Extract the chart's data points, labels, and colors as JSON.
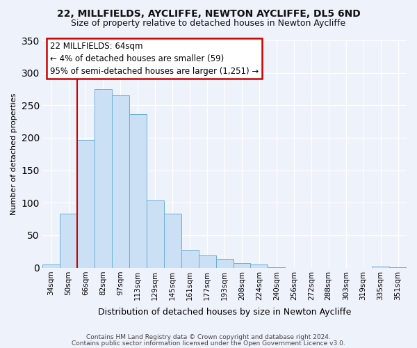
{
  "title1": "22, MILLFIELDS, AYCLIFFE, NEWTON AYCLIFFE, DL5 6ND",
  "title2": "Size of property relative to detached houses in Newton Aycliffe",
  "xlabel": "Distribution of detached houses by size in Newton Aycliffe",
  "ylabel": "Number of detached properties",
  "categories": [
    "34sqm",
    "50sqm",
    "66sqm",
    "82sqm",
    "97sqm",
    "113sqm",
    "129sqm",
    "145sqm",
    "161sqm",
    "177sqm",
    "193sqm",
    "208sqm",
    "224sqm",
    "240sqm",
    "256sqm",
    "272sqm",
    "288sqm",
    "303sqm",
    "319sqm",
    "335sqm",
    "351sqm"
  ],
  "values": [
    5,
    83,
    197,
    275,
    265,
    236,
    104,
    83,
    27,
    19,
    14,
    7,
    5,
    1,
    0,
    0,
    0,
    0,
    0,
    2,
    1
  ],
  "bar_color": "#cce0f5",
  "bar_edge_color": "#6aaed6",
  "vline_color": "#cc0000",
  "vline_position": 1.5,
  "ylim": [
    0,
    350
  ],
  "yticks": [
    0,
    50,
    100,
    150,
    200,
    250,
    300,
    350
  ],
  "annotation_title": "22 MILLFIELDS: 64sqm",
  "annotation_line1": "← 4% of detached houses are smaller (59)",
  "annotation_line2": "95% of semi-detached houses are larger (1,251) →",
  "annotation_box_color": "#ffffff",
  "annotation_box_edge": "#cc0000",
  "footer1": "Contains HM Land Registry data © Crown copyright and database right 2024.",
  "footer2": "Contains public sector information licensed under the Open Government Licence v3.0.",
  "background_color": "#eef2fa",
  "grid_color": "#ffffff",
  "title1_fontsize": 10,
  "title2_fontsize": 9,
  "xlabel_fontsize": 9,
  "ylabel_fontsize": 8,
  "tick_fontsize": 7.5,
  "annot_fontsize": 8.5,
  "footer_fontsize": 6.5
}
